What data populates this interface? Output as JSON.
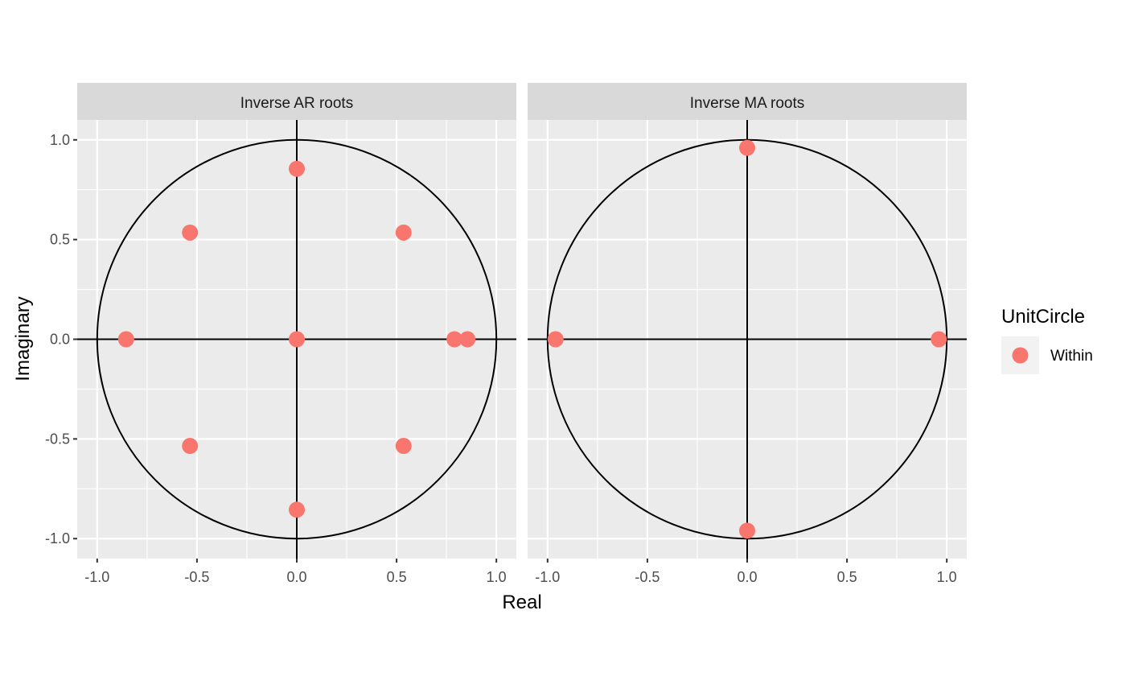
{
  "chart_data": {
    "type": "scatter",
    "xlabel": "Real",
    "ylabel": "Imaginary",
    "xlim": [
      -1.1,
      1.1
    ],
    "ylim": [
      -1.1,
      1.1
    ],
    "x_ticks": [
      -1.0,
      -0.5,
      0.0,
      0.5,
      1.0
    ],
    "y_ticks": [
      -1.0,
      -0.5,
      0.0,
      0.5,
      1.0
    ],
    "x_tick_labels": [
      "-1.0",
      "-0.5",
      "0.0",
      "0.5",
      "1.0"
    ],
    "y_tick_labels": [
      "-1.0",
      "-0.5",
      "0.0",
      "0.5",
      "1.0"
    ],
    "grid": true,
    "unit_circle": true,
    "reference_lines": [
      "x=0",
      "y=0"
    ],
    "legend": {
      "title": "UnitCircle",
      "position": "right",
      "entries": [
        {
          "label": "Within",
          "color": "#F8766D"
        }
      ]
    },
    "colors": {
      "panel_background": "#EBEBEB",
      "strip_background": "#D9D9D9",
      "grid": "#FFFFFF",
      "point": "#F8766D",
      "circle": "#000000"
    },
    "panels": [
      {
        "title": "Inverse AR roots",
        "points": [
          {
            "x": 0.0,
            "y": 0.855
          },
          {
            "x": -0.535,
            "y": 0.535
          },
          {
            "x": 0.535,
            "y": 0.535
          },
          {
            "x": -0.855,
            "y": 0.0
          },
          {
            "x": 0.0,
            "y": 0.0
          },
          {
            "x": 0.79,
            "y": 0.0
          },
          {
            "x": 0.855,
            "y": 0.0
          },
          {
            "x": -0.535,
            "y": -0.535
          },
          {
            "x": 0.535,
            "y": -0.535
          },
          {
            "x": 0.0,
            "y": -0.855
          }
        ]
      },
      {
        "title": "Inverse MA roots",
        "points": [
          {
            "x": 0.0,
            "y": 0.96
          },
          {
            "x": -0.96,
            "y": 0.0
          },
          {
            "x": 0.96,
            "y": 0.0
          },
          {
            "x": 0.0,
            "y": -0.96
          }
        ]
      }
    ]
  }
}
